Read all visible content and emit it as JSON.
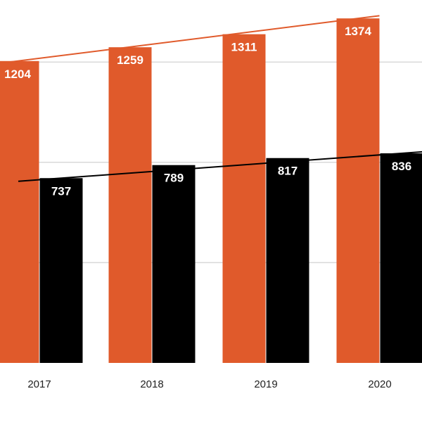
{
  "colors": {
    "series_a": "#e05a2b",
    "series_b": "#000000",
    "trend_a": "#e05a2b",
    "trend_b": "#000000",
    "grid": "#d9d9d9",
    "background": "#ffffff"
  },
  "chart_data": {
    "type": "bar",
    "title": "",
    "xlabel": "",
    "ylabel": "",
    "categories": [
      "2017",
      "2018",
      "2019",
      "2020"
    ],
    "series": [
      {
        "values": [
          1204,
          1259,
          1311,
          1374
        ]
      },
      {
        "values": [
          737,
          789,
          817,
          836
        ]
      }
    ],
    "trendlines": [
      {
        "series_index": 0,
        "start_value": 1204,
        "end_value": 1374
      },
      {
        "series_index": 1,
        "start_value": 737,
        "end_value": 836
      }
    ],
    "ylim": [
      0,
      1600
    ],
    "grid": true,
    "legend": "none",
    "data_labels": true
  }
}
